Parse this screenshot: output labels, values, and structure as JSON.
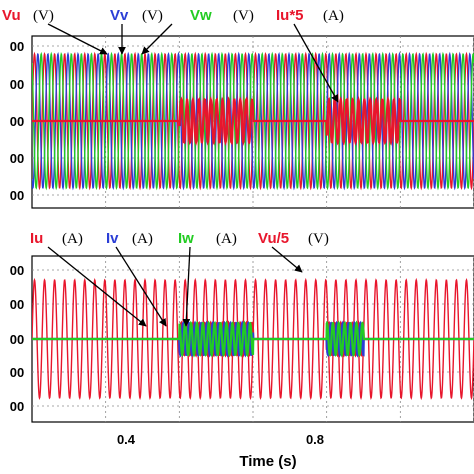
{
  "chart_data": [
    {
      "type": "line",
      "panel": "top",
      "xlim": [
        0.0,
        1.2
      ],
      "x_ticks": [
        0.4,
        0.8
      ],
      "grid": true,
      "y_tick_labels": [
        "00",
        "00",
        "00",
        "00",
        "00"
      ],
      "legend": [
        {
          "name": "Vu",
          "unit": "(V)",
          "color": "#e8162c"
        },
        {
          "name": "Vv",
          "unit": "(V)",
          "color": "#2b3ed6"
        },
        {
          "name": "Vw",
          "unit": "(V)",
          "color": "#22cc22"
        },
        {
          "name": "Iu*5",
          "unit": "(A)",
          "color": "#e8162c"
        }
      ],
      "series": [
        {
          "name": "Vu",
          "amplitude": 1.0,
          "color": "#e8162c"
        },
        {
          "name": "Vv",
          "amplitude": 1.0,
          "color": "#2b3ed6"
        },
        {
          "name": "Vw",
          "amplitude": 1.0,
          "color": "#22cc22"
        },
        {
          "name": "Iu*5",
          "amplitude_on": 0.32,
          "color": "#e8162c",
          "on_intervals": [
            [
              0.4,
              0.6
            ],
            [
              0.8,
              1.0
            ]
          ]
        }
      ]
    },
    {
      "type": "line",
      "panel": "bottom",
      "xlim": [
        0.0,
        1.2
      ],
      "x_ticks": [
        0.4,
        0.8
      ],
      "grid": true,
      "y_tick_labels": [
        "00",
        "00",
        "00",
        "00",
        "00"
      ],
      "legend": [
        {
          "name": "Iu",
          "unit": "(A)",
          "color": "#e8162c"
        },
        {
          "name": "Iv",
          "unit": "(A)",
          "color": "#2b3ed6"
        },
        {
          "name": "Iw",
          "unit": "(A)",
          "color": "#22cc22"
        },
        {
          "name": "Vu/5",
          "unit": "(V)",
          "color": "#e8162c"
        }
      ],
      "series": [
        {
          "name": "Vu/5",
          "amplitude": 1.0,
          "color": "#e8162c"
        },
        {
          "name": "Iu",
          "amplitude_on": 0.27,
          "color": "#e8162c",
          "on_intervals": [
            [
              0.4,
              0.6
            ],
            [
              0.8,
              0.9
            ]
          ]
        },
        {
          "name": "Iv",
          "amplitude_on": 0.27,
          "color": "#2b3ed6",
          "on_intervals": [
            [
              0.4,
              0.6
            ],
            [
              0.8,
              0.9
            ]
          ]
        },
        {
          "name": "Iw",
          "amplitude_on": 0.27,
          "color": "#22cc22",
          "on_intervals": [
            [
              0.4,
              0.6
            ],
            [
              0.8,
              0.9
            ]
          ]
        }
      ],
      "x_tick_labels": [
        "0.4",
        "0.8"
      ],
      "xlabel": "Time (s)"
    }
  ]
}
